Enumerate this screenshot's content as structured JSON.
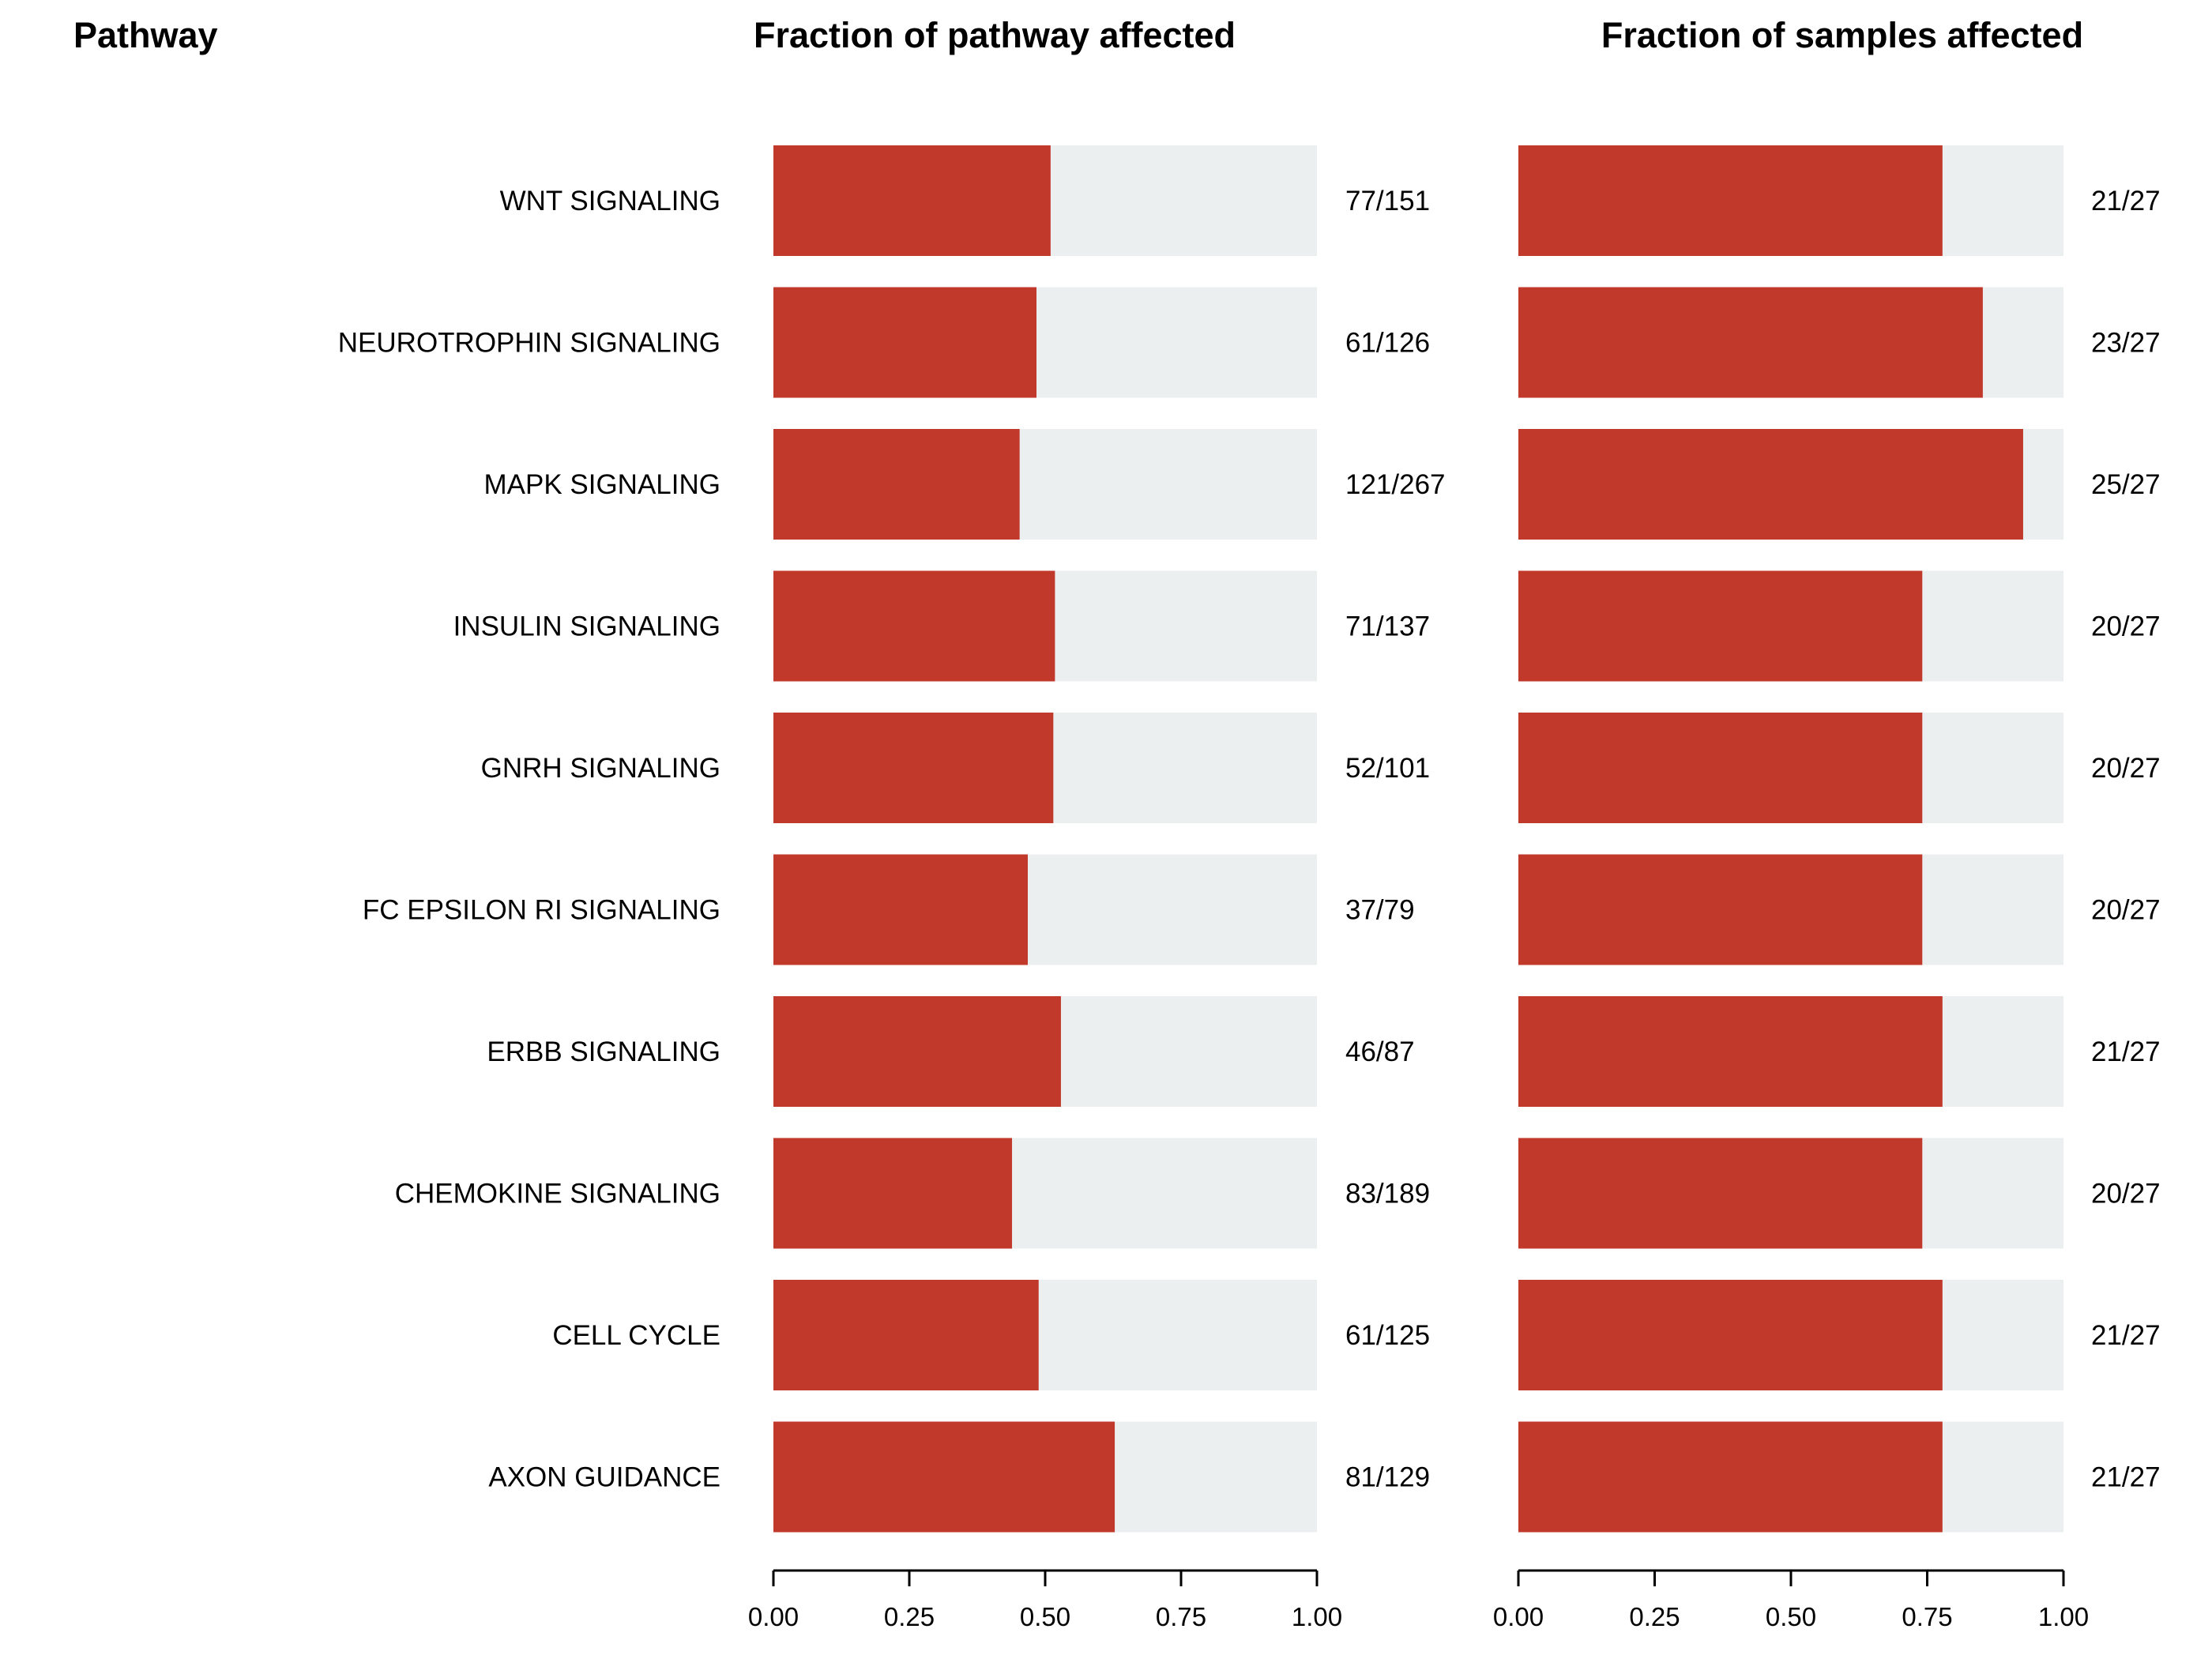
{
  "headers": {
    "pathway": "Pathway",
    "left_panel": "Fraction of pathway affected",
    "right_panel": "Fraction of samples affected"
  },
  "colors": {
    "affected": "#c0392b",
    "background_bar": "#eceff0",
    "axis": "#000000"
  },
  "chart_data": [
    {
      "type": "bar",
      "orientation": "horizontal",
      "stacked_with_background": true,
      "title": "Fraction of pathway affected",
      "xlim": [
        0,
        1
      ],
      "xticks": [
        "0.00",
        "0.25",
        "0.50",
        "0.75",
        "1.00"
      ],
      "grid": false,
      "categories": [
        "WNT SIGNALING",
        "NEUROTROPHIN SIGNALING",
        "MAPK SIGNALING",
        "INSULIN SIGNALING",
        "GNRH SIGNALING",
        "FC EPSILON RI SIGNALING",
        "ERBB SIGNALING",
        "CHEMOKINE SIGNALING",
        "CELL CYCLE",
        "AXON GUIDANCE"
      ],
      "values": [
        0.51,
        0.484,
        0.453,
        0.518,
        0.515,
        0.468,
        0.529,
        0.439,
        0.488,
        0.628
      ],
      "labels": [
        "77/151",
        "61/126",
        "121/267",
        "71/137",
        "52/101",
        "37/79",
        "46/87",
        "83/189",
        "61/125",
        "81/129"
      ]
    },
    {
      "type": "bar",
      "orientation": "horizontal",
      "stacked_with_background": true,
      "title": "Fraction of samples affected",
      "xlim": [
        0,
        1
      ],
      "xticks": [
        "0.00",
        "0.25",
        "0.50",
        "0.75",
        "1.00"
      ],
      "grid": false,
      "categories": [
        "WNT SIGNALING",
        "NEUROTROPHIN SIGNALING",
        "MAPK SIGNALING",
        "INSULIN SIGNALING",
        "GNRH SIGNALING",
        "FC EPSILON RI SIGNALING",
        "ERBB SIGNALING",
        "CHEMOKINE SIGNALING",
        "CELL CYCLE",
        "AXON GUIDANCE"
      ],
      "values": [
        0.778,
        0.852,
        0.926,
        0.741,
        0.741,
        0.741,
        0.778,
        0.741,
        0.778,
        0.778
      ],
      "labels": [
        "21/27",
        "23/27",
        "25/27",
        "20/27",
        "20/27",
        "20/27",
        "21/27",
        "20/27",
        "21/27",
        "21/27"
      ]
    }
  ]
}
